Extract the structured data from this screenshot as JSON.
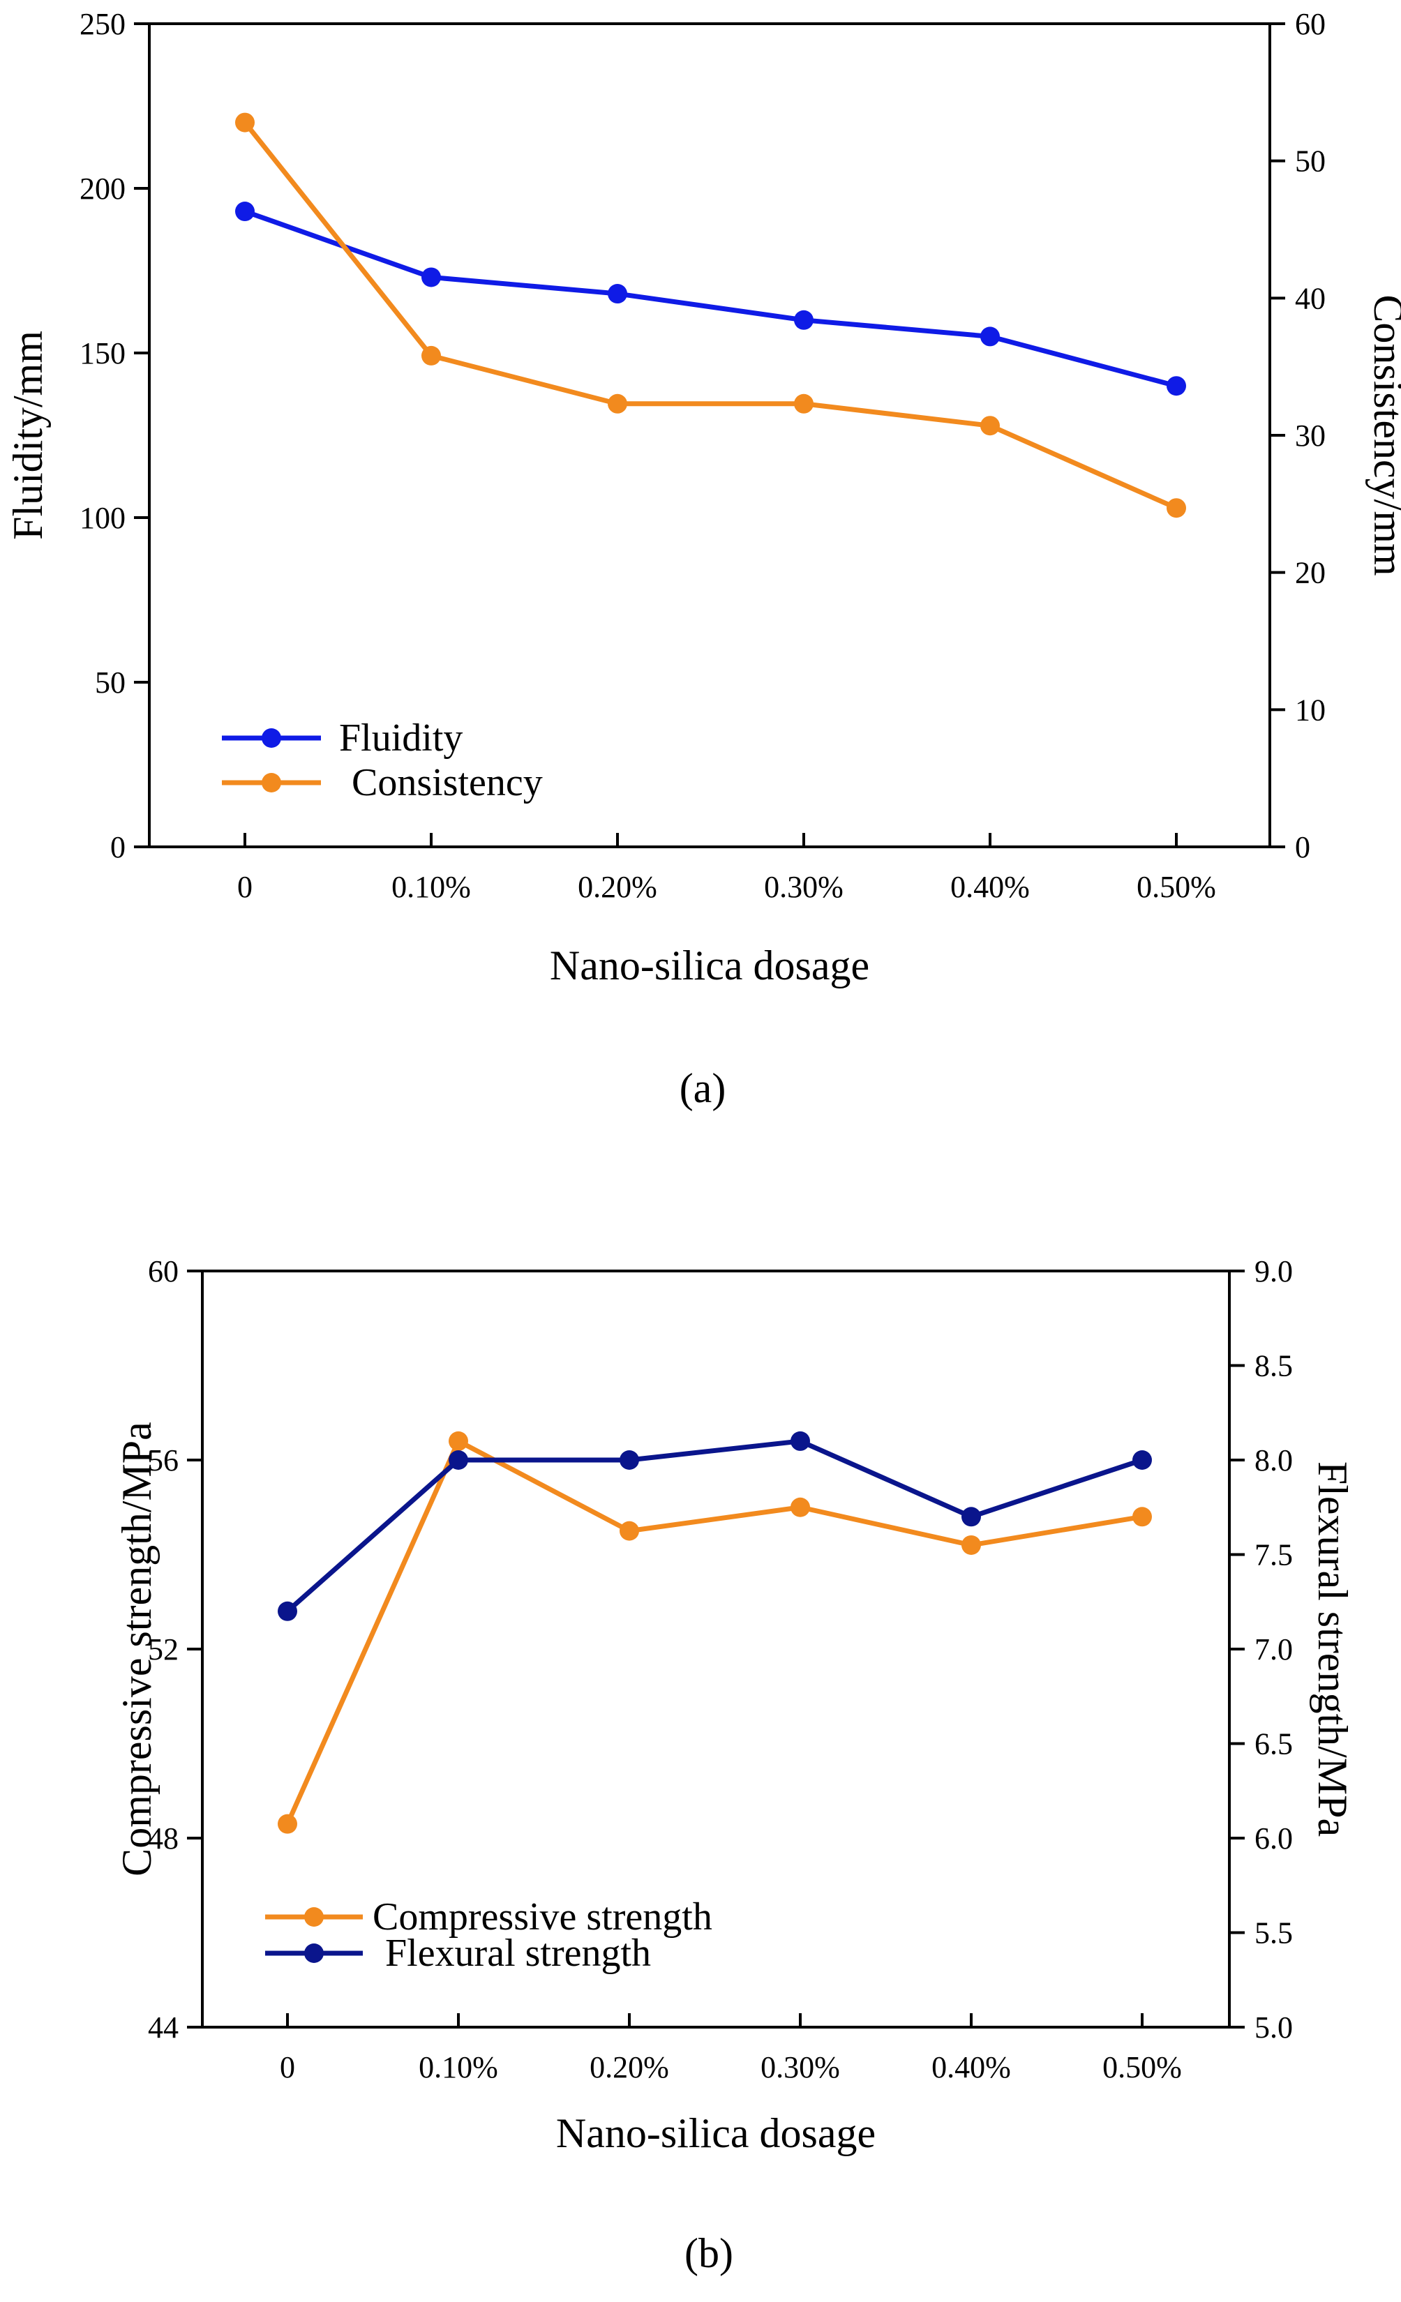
{
  "colors": {
    "fluidity": "#0f1be6",
    "consistency": "#f28a1e",
    "compressive": "#f28a1e",
    "flexural": "#0a158c",
    "axis": "#000000"
  },
  "chart_data": [
    {
      "type": "line",
      "panel_label": "(a)",
      "xlabel": "Nano-silica dosage",
      "categories": [
        "0",
        "0.10%",
        "0.20%",
        "0.30%",
        "0.40%",
        "0.50%"
      ],
      "ylabel_left": "Fluidity/mm",
      "ylabel_right": "Consistency/mm",
      "ylim_left": [
        0,
        250
      ],
      "ylim_right": [
        0,
        60
      ],
      "yticks_left": [
        0,
        50,
        100,
        150,
        200,
        250
      ],
      "yticks_right": [
        0,
        10,
        20,
        30,
        40,
        50,
        60
      ],
      "grid": false,
      "legend_position": "bottom-left",
      "series": [
        {
          "name": "Fluidity",
          "axis": "left",
          "color": "#0f1be6",
          "values": [
            193,
            173,
            168,
            160,
            155,
            140
          ]
        },
        {
          "name": "Consistency",
          "axis": "right",
          "color": "#f28a1e",
          "values": [
            52.8,
            35.8,
            32.3,
            32.3,
            30.7,
            24.7
          ]
        }
      ]
    },
    {
      "type": "line",
      "panel_label": "(b)",
      "xlabel": "Nano-silica dosage",
      "categories": [
        "0",
        "0.10%",
        "0.20%",
        "0.30%",
        "0.40%",
        "0.50%"
      ],
      "ylabel_left": "Compressive strength/MPa",
      "ylabel_right": "Flexural strength/MPa",
      "ylim_left": [
        44,
        60
      ],
      "ylim_right": [
        5.0,
        9.0
      ],
      "yticks_left": [
        44,
        48,
        52,
        56,
        60
      ],
      "yticks_right": [
        5.0,
        5.5,
        6.0,
        6.5,
        7.0,
        7.5,
        8.0,
        8.5,
        9.0
      ],
      "grid": false,
      "legend_position": "bottom-left",
      "series": [
        {
          "name": "Compressive strength",
          "axis": "left",
          "color": "#f28a1e",
          "values": [
            48.3,
            56.4,
            54.5,
            55.0,
            54.2,
            54.8
          ]
        },
        {
          "name": "Flexural strength",
          "axis": "right",
          "color": "#0a158c",
          "values": [
            7.2,
            8.0,
            8.0,
            8.1,
            7.7,
            8.0
          ]
        }
      ]
    }
  ]
}
